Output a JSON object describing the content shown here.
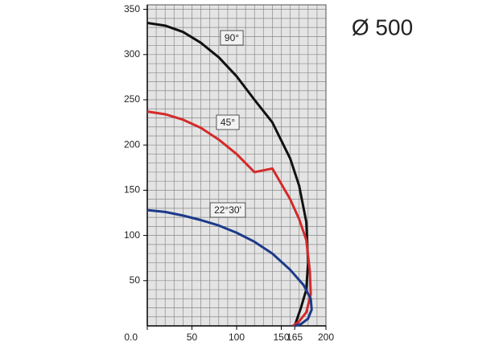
{
  "chart_data": {
    "type": "line",
    "title": "Ø 500",
    "xlim": [
      0,
      200
    ],
    "ylim": [
      0,
      355
    ],
    "xticks": [
      {
        "value": 0,
        "label": "0.0"
      },
      50,
      100,
      150,
      165,
      200
    ],
    "yticks": [
      50,
      100,
      150,
      200,
      250,
      300,
      350
    ],
    "grid": true,
    "minor_step": 10,
    "series": [
      {
        "name": "90°",
        "color": "#111111",
        "x": [
          0,
          20,
          40,
          60,
          80,
          100,
          120,
          140,
          160,
          170,
          178,
          180,
          178,
          172,
          165
        ],
        "values": [
          335,
          332,
          325,
          313,
          297,
          276,
          250,
          225,
          185,
          155,
          115,
          70,
          40,
          20,
          0
        ]
      },
      {
        "name": "45°",
        "color": "#d42a2a",
        "x": [
          0,
          20,
          40,
          60,
          80,
          100,
          120,
          140,
          160,
          170,
          178,
          182,
          183,
          178,
          170,
          163
        ],
        "values": [
          237,
          234,
          228,
          219,
          206,
          190,
          170,
          174,
          140,
          118,
          95,
          60,
          35,
          15,
          5,
          0
        ]
      },
      {
        "name": "22°30'",
        "color": "#1c3a8a",
        "x": [
          0,
          20,
          40,
          60,
          80,
          100,
          120,
          140,
          160,
          175,
          183,
          184,
          180,
          172,
          165
        ],
        "values": [
          128,
          126,
          122,
          117,
          111,
          103,
          93,
          80,
          62,
          45,
          30,
          18,
          8,
          2,
          0
        ]
      }
    ]
  }
}
